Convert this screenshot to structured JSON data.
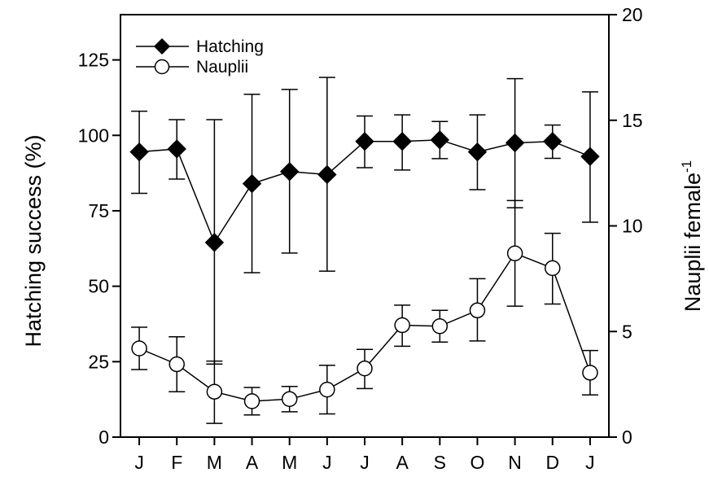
{
  "chart_data": {
    "type": "line",
    "title": "",
    "categories": [
      "J",
      "F",
      "M",
      "A",
      "M",
      "J",
      "J",
      "A",
      "S",
      "O",
      "N",
      "D",
      "J"
    ],
    "left_axis": {
      "label": "Hatching success (%)",
      "ylim": [
        0,
        140
      ],
      "ticks": [
        0,
        25,
        50,
        75,
        100,
        125
      ]
    },
    "right_axis": {
      "label": "Nauplii female",
      "label_superscript": "-1",
      "ylim": [
        0,
        20
      ],
      "ticks": [
        0,
        5,
        10,
        15,
        20
      ]
    },
    "grid": false,
    "legend_position": "top-left",
    "series": [
      {
        "name": "Hatching",
        "axis": "left",
        "marker": "filled-diamond",
        "color": "#000000",
        "values": [
          94.5,
          95.5,
          64.5,
          84,
          88,
          87,
          98,
          98,
          98.5,
          94.5,
          97.5,
          98,
          93
        ],
        "error_low": [
          80.8,
          85.5,
          24.2,
          54.5,
          61,
          55,
          89.3,
          88.5,
          92.3,
          82,
          76,
          92.4,
          71.2
        ],
        "error_high": [
          108,
          105.2,
          105.2,
          113.6,
          115.2,
          119.2,
          106.4,
          106.8,
          104.6,
          106.8,
          118.8,
          103.4,
          114.4
        ]
      },
      {
        "name": "Nauplii",
        "axis": "right",
        "marker": "open-circle",
        "color": "#000000",
        "values": [
          4.2,
          3.45,
          2.15,
          1.7,
          1.8,
          2.25,
          3.25,
          5.3,
          5.25,
          6,
          8.7,
          8,
          3.05
        ],
        "error_low": [
          3.2,
          2.15,
          0.65,
          1.05,
          1.2,
          1.1,
          2.3,
          4.3,
          4.5,
          4.55,
          6.2,
          6.3,
          2
        ],
        "error_high": [
          5.2,
          4.75,
          3.6,
          2.35,
          2.4,
          3.4,
          4.15,
          6.25,
          6,
          7.5,
          11.2,
          9.65,
          4.1
        ]
      }
    ]
  }
}
